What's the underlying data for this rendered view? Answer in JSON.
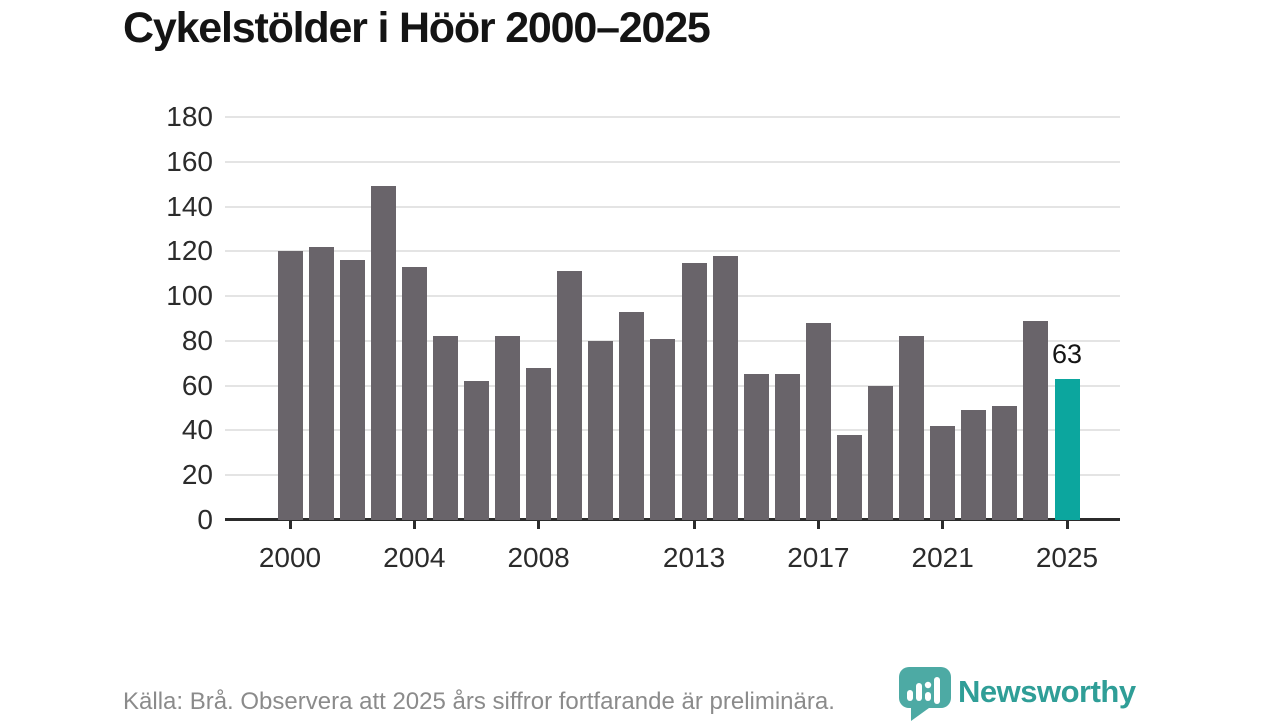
{
  "title": "Cykelstölder i Höör 2000–2025",
  "chart_data": {
    "type": "bar",
    "title": "Cykelstölder i Höör 2000–2025",
    "x": [
      2000,
      2001,
      2002,
      2003,
      2004,
      2005,
      2006,
      2007,
      2008,
      2009,
      2010,
      2011,
      2012,
      2013,
      2014,
      2015,
      2016,
      2017,
      2018,
      2019,
      2020,
      2021,
      2022,
      2023,
      2024,
      2025
    ],
    "values": [
      120,
      122,
      116,
      149,
      113,
      82,
      62,
      82,
      68,
      111,
      80,
      93,
      81,
      115,
      118,
      65,
      65,
      88,
      38,
      60,
      82,
      42,
      49,
      51,
      89,
      63
    ],
    "xlabel": "",
    "ylabel": "",
    "ylim": [
      0,
      180
    ],
    "yticks": [
      0,
      20,
      40,
      60,
      80,
      100,
      120,
      140,
      160,
      180
    ],
    "xtick_years": [
      2000,
      2004,
      2008,
      2013,
      2017,
      2021,
      2025
    ],
    "grid": true,
    "legend": "none",
    "bar_color": "#69646a",
    "highlight_year": 2025,
    "highlight_color": "#0ca69e",
    "highlight_label": "63"
  },
  "footer": {
    "source_note": "Källa: Brå. Observera att 2025 års siffror fortfarande är preliminära."
  },
  "branding": {
    "logo_text": "Newsworthy",
    "logo_color": "#2f9e97",
    "logo_icon": "newsworthy-chart-bubble-icon"
  }
}
